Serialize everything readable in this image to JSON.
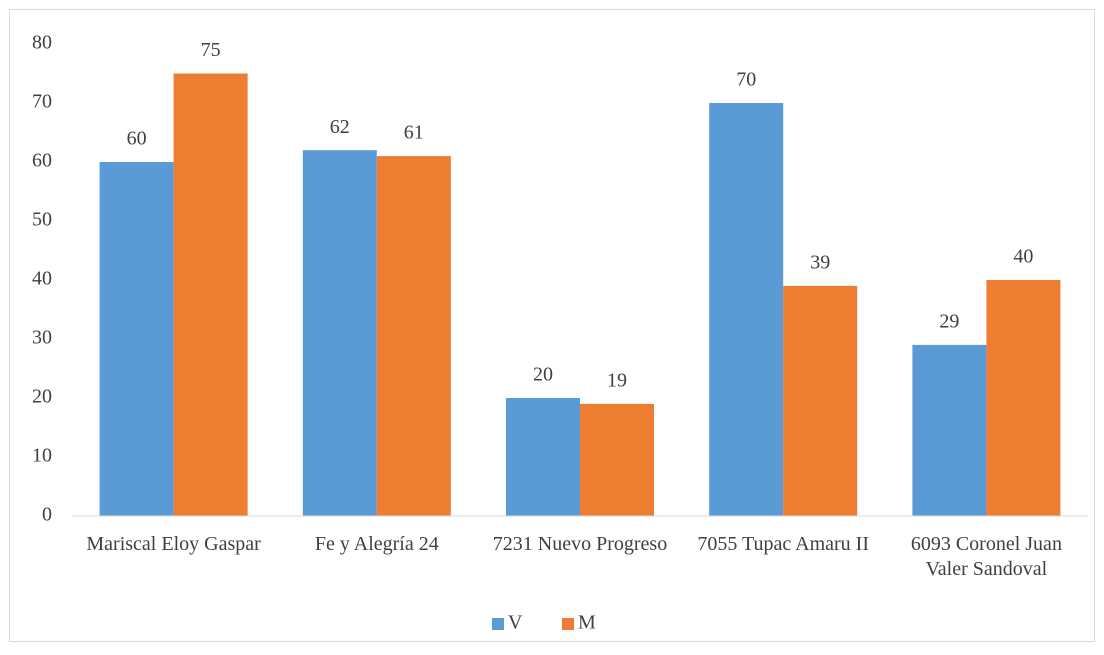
{
  "chart_data": {
    "type": "bar",
    "categories": [
      "Mariscal Eloy Gaspar",
      "Fe y Alegría 24",
      "7231 Nuevo Progreso",
      "7055 Tupac Amaru II",
      "6093 Coronel Juan Valer Sandoval"
    ],
    "series": [
      {
        "name": "V",
        "color": "#5b9bd5",
        "values": [
          60,
          62,
          20,
          70,
          29
        ]
      },
      {
        "name": "M",
        "color": "#ed7d31",
        "values": [
          75,
          61,
          19,
          39,
          40
        ]
      }
    ],
    "ylim": [
      0,
      80
    ],
    "yticks": [
      0,
      10,
      20,
      30,
      40,
      50,
      60,
      70,
      80
    ],
    "grid": false,
    "legend": "bottom"
  }
}
